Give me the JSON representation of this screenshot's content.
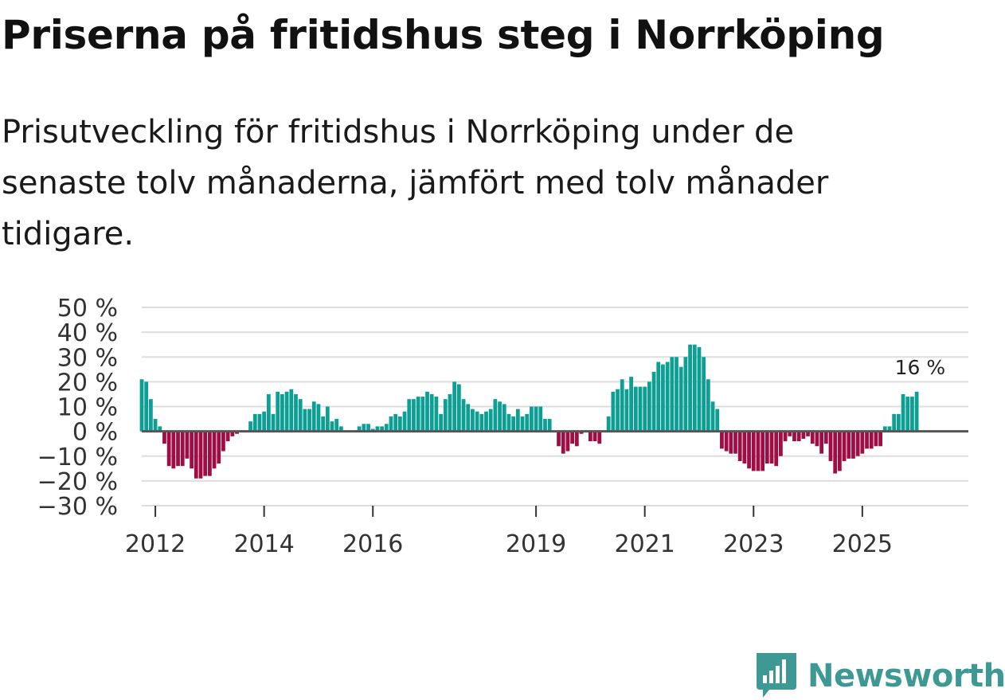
{
  "title": "Priserna på fritidshus steg i Norrköping",
  "subtitle": "Prisutveckling för fritidshus i Norrköping under de senaste tolv månaderna, jämfört med tolv månader tidigare.",
  "brand": {
    "name": "Newsworthy"
  },
  "colors": {
    "positive": "#0d9f94",
    "negative": "#9e0e45",
    "grid": "#dddddd",
    "zero": "#555555",
    "brand": "#3e9994"
  },
  "chart_data": {
    "type": "bar",
    "title": "Priserna på fritidshus steg i Norrköping",
    "xlabel": "",
    "ylabel": "",
    "ylim": [
      -30,
      50
    ],
    "y_ticks": [
      50,
      40,
      30,
      20,
      10,
      0,
      -10,
      -20,
      -30
    ],
    "y_tick_labels": [
      "50 %",
      "40 %",
      "30 %",
      "20 %",
      "10 %",
      "0 %",
      "−10 %",
      "−20 %",
      "−30 %"
    ],
    "x_tick_labels": [
      {
        "label": "2012",
        "x": 2012
      },
      {
        "label": "2014",
        "x": 2014
      },
      {
        "label": "2016",
        "x": 2016
      },
      {
        "label": "2019",
        "x": 2019
      },
      {
        "label": "2021",
        "x": 2021
      },
      {
        "label": "2023",
        "x": 2023
      },
      {
        "label": "2025",
        "x": 2025
      }
    ],
    "x_start": 2011.75,
    "months_per_year": 12,
    "values": [
      21,
      20,
      13,
      5,
      2,
      -5,
      -14,
      -15,
      -14,
      -14,
      -11,
      -15,
      -19,
      -19,
      -18,
      -18,
      -15,
      -13,
      -8,
      -4,
      -2,
      -1,
      0,
      0,
      4,
      7,
      7,
      8,
      15,
      7,
      16,
      15,
      16,
      17,
      15,
      13,
      9,
      9,
      12,
      11,
      6,
      10,
      4,
      5,
      2,
      0,
      0,
      0,
      2,
      3,
      3,
      1,
      2,
      2,
      3,
      6,
      7,
      6,
      8,
      13,
      13,
      14,
      14,
      16,
      15,
      14,
      7,
      13,
      15,
      20,
      19,
      13,
      11,
      9,
      8,
      7,
      8,
      9,
      13,
      12,
      11,
      7,
      6,
      9,
      6,
      7,
      10,
      10,
      10,
      5,
      5,
      0,
      -6,
      -9,
      -8,
      -5,
      -6,
      -1,
      0,
      -4,
      -4,
      -5,
      0,
      6,
      16,
      17,
      21,
      17,
      22,
      18,
      18,
      18,
      20,
      24,
      28,
      27,
      28,
      30,
      30,
      26,
      30,
      35,
      35,
      34,
      30,
      21,
      12,
      9,
      -7,
      -8,
      -9,
      -9,
      -12,
      -13,
      -15,
      -16,
      -16,
      -16,
      -13,
      -13,
      -14,
      -10,
      -4,
      -2,
      -4,
      -4,
      -3,
      -2,
      -5,
      -6,
      -9,
      -5,
      -12,
      -17,
      -16,
      -12,
      -11,
      -11,
      -10,
      -9,
      -7,
      -7,
      -6,
      -6,
      2,
      2,
      7,
      7,
      15,
      14,
      14,
      16
    ],
    "annotation": {
      "label": "16 %",
      "value": 16
    }
  }
}
